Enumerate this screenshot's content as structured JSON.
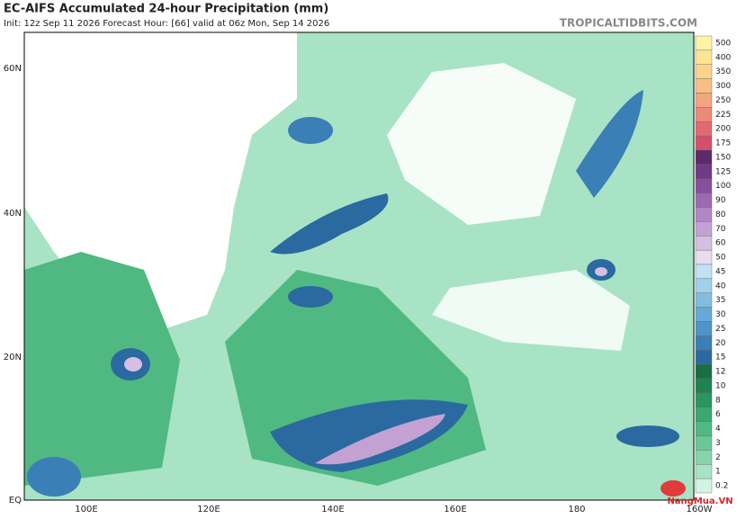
{
  "header": {
    "title": "EC-AIFS Accumulated 24-hour Precipitation (mm)",
    "subtitle": "Init: 12z Sep 11 2026   Forecast Hour: [66]   valid at 06z Mon, Sep 14 2026",
    "source": "TROPICALTIDBITS.COM"
  },
  "map": {
    "lat_labels": [
      "60N",
      "40N",
      "20N",
      "EQ"
    ],
    "lon_labels": [
      "100E",
      "120E",
      "140E",
      "160E",
      "180",
      "160W"
    ]
  },
  "colorbar": {
    "levels": [
      {
        "label": "500",
        "color": "#fff3a8"
      },
      {
        "label": "400",
        "color": "#fde593"
      },
      {
        "label": "350",
        "color": "#fbd48b"
      },
      {
        "label": "300",
        "color": "#f7bf84"
      },
      {
        "label": "250",
        "color": "#f2a67e"
      },
      {
        "label": "225",
        "color": "#ea8a78"
      },
      {
        "label": "200",
        "color": "#e06a70"
      },
      {
        "label": "175",
        "color": "#d4506a"
      },
      {
        "label": "150",
        "color": "#5a2a6d"
      },
      {
        "label": "125",
        "color": "#713a86"
      },
      {
        "label": "100",
        "color": "#874f9d"
      },
      {
        "label": "90",
        "color": "#9c6ab1"
      },
      {
        "label": "80",
        "color": "#b086c3"
      },
      {
        "label": "70",
        "color": "#c3a2d3"
      },
      {
        "label": "60",
        "color": "#d5bfe2"
      },
      {
        "label": "50",
        "color": "#e8dcf0"
      },
      {
        "label": "45",
        "color": "#c0e2f2"
      },
      {
        "label": "40",
        "color": "#a0d0ea"
      },
      {
        "label": "35",
        "color": "#82bde0"
      },
      {
        "label": "30",
        "color": "#66a9d4"
      },
      {
        "label": "25",
        "color": "#4e94c6"
      },
      {
        "label": "20",
        "color": "#3a7fb5"
      },
      {
        "label": "15",
        "color": "#2a6aa0"
      },
      {
        "label": "12",
        "color": "#176f44"
      },
      {
        "label": "10",
        "color": "#1e8350"
      },
      {
        "label": "8",
        "color": "#2a965f"
      },
      {
        "label": "6",
        "color": "#3aa86f"
      },
      {
        "label": "4",
        "color": "#50b982"
      },
      {
        "label": "3",
        "color": "#6ac796"
      },
      {
        "label": "2",
        "color": "#85d4ab"
      },
      {
        "label": "1",
        "color": "#a8e3c5"
      },
      {
        "label": "0.2",
        "color": "#d4f3e2"
      }
    ]
  },
  "logo": {
    "text": "NangMua.VN"
  }
}
